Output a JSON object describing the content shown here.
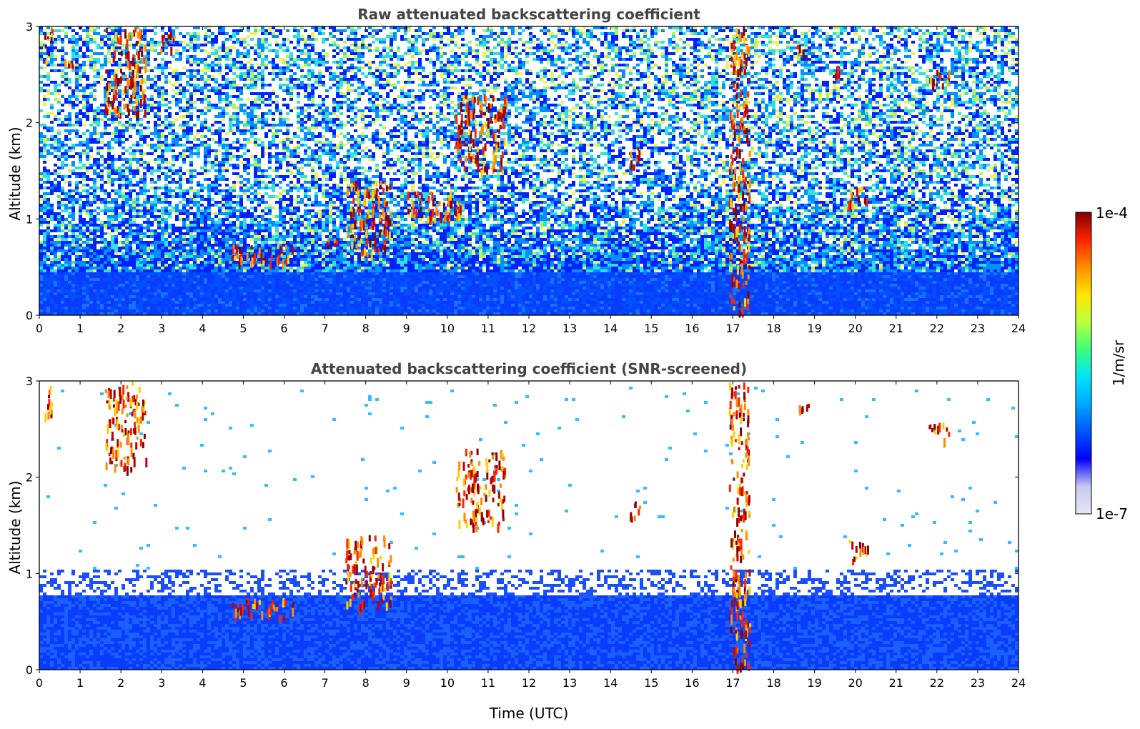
{
  "chart_data": [
    {
      "type": "heatmap",
      "title": "Raw attenuated backscattering coefficient",
      "xlabel": "",
      "ylabel": "Altitude (km)",
      "xlim": [
        0,
        24
      ],
      "ylim": [
        0,
        3
      ],
      "x_ticks": [
        "0",
        "1",
        "2",
        "3",
        "4",
        "5",
        "6",
        "7",
        "8",
        "9",
        "10",
        "11",
        "12",
        "13",
        "14",
        "15",
        "16",
        "17",
        "18",
        "19",
        "20",
        "21",
        "22",
        "23",
        "24"
      ],
      "y_ticks": [
        "0",
        "1",
        "2",
        "3"
      ],
      "noise_level": "high",
      "boundary_layer_top_km": 0.45,
      "features": [
        {
          "t0": 0.1,
          "t1": 0.3,
          "z0": 2.6,
          "z1": 3.0,
          "level": "high"
        },
        {
          "t0": 0.6,
          "t1": 0.8,
          "z0": 2.6,
          "z1": 2.7,
          "level": "high"
        },
        {
          "t0": 1.6,
          "t1": 2.6,
          "z0": 2.1,
          "z1": 3.0,
          "level": "high"
        },
        {
          "t0": 2.9,
          "t1": 3.3,
          "z0": 2.75,
          "z1": 2.95,
          "level": "high"
        },
        {
          "t0": 4.7,
          "t1": 6.2,
          "z0": 0.55,
          "z1": 0.75,
          "level": "high"
        },
        {
          "t0": 7.0,
          "t1": 7.3,
          "z0": 0.7,
          "z1": 0.85,
          "level": "high"
        },
        {
          "t0": 7.5,
          "t1": 8.6,
          "z0": 0.65,
          "z1": 1.4,
          "level": "high"
        },
        {
          "t0": 9.0,
          "t1": 10.3,
          "z0": 1.0,
          "z1": 1.3,
          "level": "high"
        },
        {
          "t0": 10.2,
          "t1": 11.4,
          "z0": 1.5,
          "z1": 2.3,
          "level": "high"
        },
        {
          "t0": 14.4,
          "t1": 14.7,
          "z0": 1.55,
          "z1": 1.75,
          "level": "high"
        },
        {
          "t0": 16.9,
          "t1": 17.4,
          "z0": 0.05,
          "z1": 3.0,
          "level": "high"
        },
        {
          "t0": 18.5,
          "t1": 18.85,
          "z0": 2.72,
          "z1": 2.82,
          "level": "high"
        },
        {
          "t0": 19.5,
          "t1": 19.6,
          "z0": 2.5,
          "z1": 2.6,
          "level": "high"
        },
        {
          "t0": 19.8,
          "t1": 20.3,
          "z0": 1.15,
          "z1": 1.35,
          "level": "high"
        },
        {
          "t0": 21.8,
          "t1": 22.3,
          "z0": 2.4,
          "z1": 2.58,
          "level": "high"
        }
      ]
    },
    {
      "type": "heatmap",
      "title": "Attenuated backscattering coefficient (SNR-screened)",
      "xlabel": "Time (UTC)",
      "ylabel": "Altitude (km)",
      "xlim": [
        0,
        24
      ],
      "ylim": [
        0,
        3
      ],
      "x_ticks": [
        "0",
        "1",
        "2",
        "3",
        "4",
        "5",
        "6",
        "7",
        "8",
        "9",
        "10",
        "11",
        "12",
        "13",
        "14",
        "15",
        "16",
        "17",
        "18",
        "19",
        "20",
        "21",
        "22",
        "23",
        "24"
      ],
      "y_ticks": [
        "0",
        "1",
        "2",
        "3"
      ],
      "noise_level": "screened",
      "boundary_layer_top_km": 0.85,
      "features": [
        {
          "t0": 0.1,
          "t1": 0.3,
          "z0": 2.6,
          "z1": 3.0,
          "level": "high"
        },
        {
          "t0": 1.6,
          "t1": 2.6,
          "z0": 2.1,
          "z1": 3.0,
          "level": "high"
        },
        {
          "t0": 4.7,
          "t1": 6.2,
          "z0": 0.55,
          "z1": 0.75,
          "level": "high"
        },
        {
          "t0": 7.5,
          "t1": 8.6,
          "z0": 0.65,
          "z1": 1.4,
          "level": "high"
        },
        {
          "t0": 10.2,
          "t1": 11.4,
          "z0": 1.5,
          "z1": 2.3,
          "level": "high"
        },
        {
          "t0": 14.4,
          "t1": 14.7,
          "z0": 1.55,
          "z1": 1.75,
          "level": "high"
        },
        {
          "t0": 16.9,
          "t1": 17.4,
          "z0": 0.05,
          "z1": 3.0,
          "level": "high"
        },
        {
          "t0": 18.5,
          "t1": 18.85,
          "z0": 2.72,
          "z1": 2.82,
          "level": "high"
        },
        {
          "t0": 19.8,
          "t1": 20.3,
          "z0": 1.15,
          "z1": 1.35,
          "level": "high"
        },
        {
          "t0": 21.8,
          "t1": 22.3,
          "z0": 2.4,
          "z1": 2.58,
          "level": "high"
        }
      ]
    }
  ],
  "colorbar": {
    "label": "1/m/sr",
    "max_label": "1e-4",
    "min_label": "1e-7",
    "colormap": "jet",
    "colors": [
      "#e6e6f8",
      "#c8c8f0",
      "#0000ff",
      "#0055ff",
      "#00a8ff",
      "#00e4f8",
      "#3cff7c",
      "#bcff3a",
      "#ffe600",
      "#ff8c00",
      "#ff2200",
      "#800000"
    ]
  }
}
